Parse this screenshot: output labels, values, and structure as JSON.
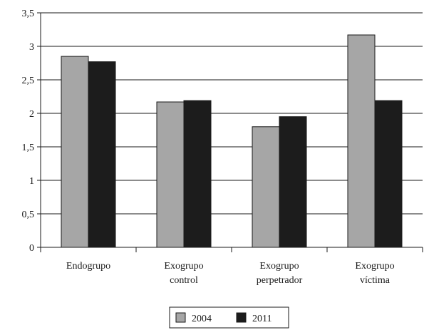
{
  "chart_data": {
    "type": "bar",
    "categories": [
      [
        "Endogrupo"
      ],
      [
        "Exogrupo",
        "control"
      ],
      [
        "Exogrupo",
        "perpetrador"
      ],
      [
        "Exogrupo",
        "víctima"
      ]
    ],
    "series": [
      {
        "name": "2004",
        "color": "#a6a6a6",
        "values": [
          2.85,
          2.17,
          1.8,
          3.17
        ]
      },
      {
        "name": "2011",
        "color": "#1c1c1c",
        "values": [
          2.77,
          2.19,
          1.95,
          2.19
        ]
      }
    ],
    "yticks": [
      "0",
      "0,5",
      "1",
      "1,5",
      "2",
      "2,5",
      "3",
      "3,5"
    ],
    "ylim": [
      0,
      3.5
    ],
    "grid": true,
    "legend_position": "bottom-center"
  }
}
